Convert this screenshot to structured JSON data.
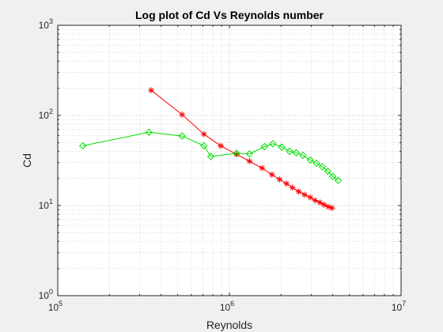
{
  "chart_data": {
    "type": "line",
    "title": "Log plot of Cd Vs Reynolds number",
    "xlabel": "Reynolds",
    "ylabel": "Cd",
    "xscale": "log",
    "yscale": "log",
    "xlim": [
      100000,
      10000000
    ],
    "ylim": [
      1,
      1000
    ],
    "grid": "major and minor, dotted",
    "x_ticks": [
      {
        "base": "10",
        "exp": "5"
      },
      {
        "base": "10",
        "exp": "6"
      },
      {
        "base": "10",
        "exp": "7"
      }
    ],
    "y_ticks": [
      {
        "base": "10",
        "exp": "0"
      },
      {
        "base": "10",
        "exp": "1"
      },
      {
        "base": "10",
        "exp": "2"
      },
      {
        "base": "10",
        "exp": "3"
      }
    ],
    "series": [
      {
        "color": "#ff0000",
        "marker": "asterisk",
        "x": [
          350000,
          530000,
          710000,
          890000,
          1100000,
          1310000,
          1550000,
          1770000,
          1960000,
          2150000,
          2330000,
          2530000,
          2740000,
          2960000,
          3160000,
          3370000,
          3560000,
          3760000,
          3960000
        ],
        "y": [
          190,
          102,
          62,
          46,
          37,
          31,
          26,
          22,
          19.5,
          17.5,
          15.8,
          14.3,
          13.2,
          12.3,
          11.4,
          10.8,
          10.2,
          9.7,
          9.4
        ]
      },
      {
        "color": "#00e000",
        "marker": "diamond",
        "x": [
          140000,
          340000,
          530000,
          710000,
          780000,
          1100000,
          1310000,
          1600000,
          1790000,
          2020000,
          2240000,
          2450000,
          2680000,
          2960000,
          3210000,
          3480000,
          3740000,
          4000000,
          4300000
        ],
        "y": [
          46,
          65,
          59,
          46,
          35,
          38,
          37.5,
          45,
          48.5,
          44.5,
          40,
          38.5,
          36,
          32,
          29.5,
          27,
          24,
          21,
          19
        ]
      }
    ]
  }
}
